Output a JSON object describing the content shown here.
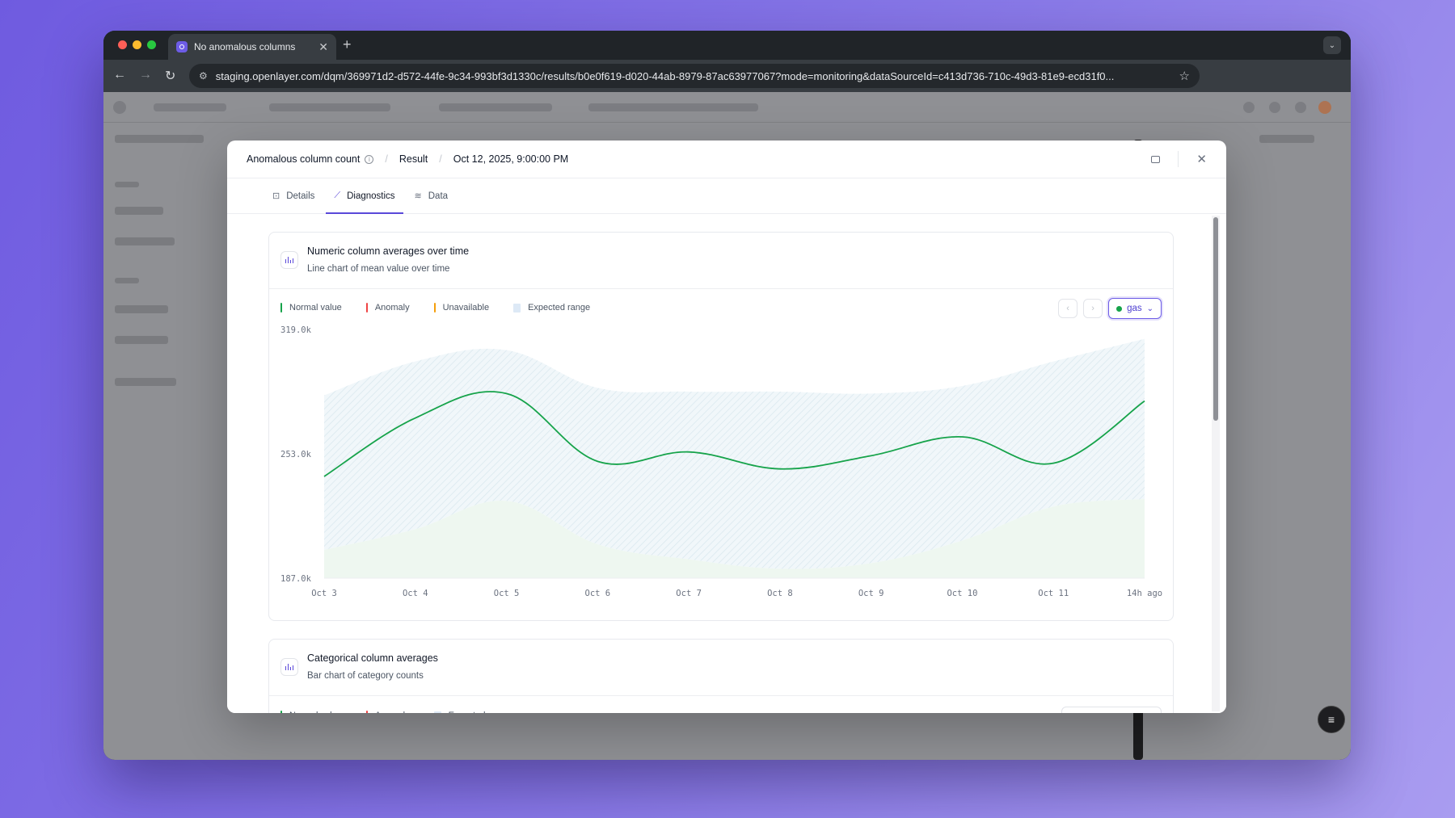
{
  "browser": {
    "tab_title": "No anomalous columns",
    "url": "staging.openlayer.com/dqm/369971d2-d572-44fe-9c34-993bf3d1330c/results/b0e0f619-d020-44ab-8979-87ac63977067?mode=monitoring&dataSourceId=c413d736-710c-49d3-81e9-ecd31f0..."
  },
  "modal": {
    "breadcrumb": {
      "metric": "Anomalous column count",
      "section": "Result",
      "timestamp": "Oct 12, 2025, 9:00:00 PM"
    },
    "tabs": [
      {
        "label": "Details",
        "icon": "details-icon",
        "active": false
      },
      {
        "label": "Diagnostics",
        "icon": "chart-line-icon",
        "active": true
      },
      {
        "label": "Data",
        "icon": "database-icon",
        "active": false
      }
    ],
    "card1": {
      "title": "Numeric column averages over time",
      "subtitle": "Line chart of mean value over time",
      "legend": {
        "normal": "Normal value",
        "anomaly": "Anomaly",
        "unavailable": "Unavailable",
        "expected": "Expected range"
      },
      "column": "gas"
    },
    "card2": {
      "title": "Categorical column averages",
      "subtitle": "Bar chart of category counts"
    }
  },
  "colors": {
    "accent": "#5a48d9",
    "normal": "#16a34a",
    "anomaly": "#ef4444",
    "unavailable": "#f59e0b",
    "expected": "#dde9f6"
  },
  "chart_data": {
    "type": "line",
    "title": "Numeric column averages over time",
    "series_name": "gas",
    "y_ticks": [
      "319.0k",
      "253.0k",
      "187.0k"
    ],
    "ylim": [
      187000,
      319000
    ],
    "categories": [
      "Oct 3",
      "Oct 4",
      "Oct 5",
      "Oct 6",
      "Oct 7",
      "Oct 8",
      "Oct 9",
      "Oct 10",
      "Oct 11",
      "14h ago"
    ],
    "values": [
      241000,
      272000,
      285000,
      249000,
      254000,
      245000,
      252000,
      262000,
      248000,
      281000
    ],
    "expected_upper": [
      284000,
      302000,
      308000,
      288000,
      286000,
      286000,
      285000,
      289000,
      302000,
      314000
    ],
    "expected_lower": [
      202000,
      213000,
      228000,
      205000,
      197000,
      192000,
      195000,
      207000,
      225000,
      229000
    ]
  }
}
